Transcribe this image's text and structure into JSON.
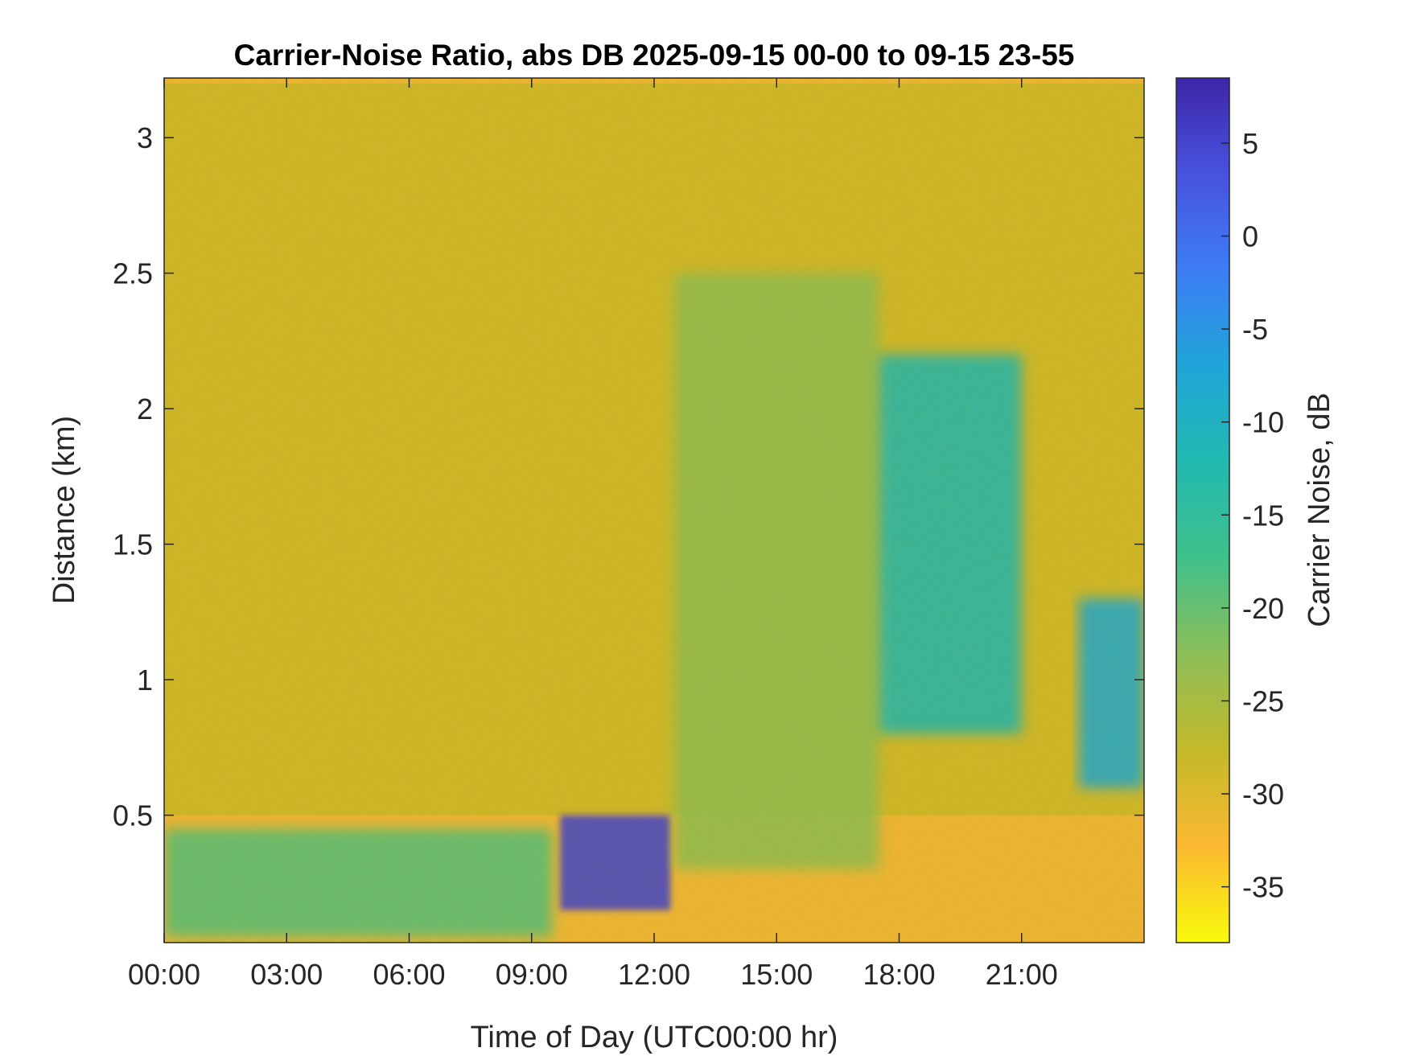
{
  "chart_data": {
    "type": "heatmap",
    "title": "Carrier-Noise Ratio, abs DB 2025-09-15 00-00 to 09-15 23-55",
    "xlabel": "Time of Day (UTC00:00 hr)",
    "ylabel": "Distance (km)",
    "colorbar_label": "Carrier Noise, dB",
    "x_unit": "hour",
    "xlim": [
      0,
      24
    ],
    "ylim": [
      0.03,
      3.22
    ],
    "clim": [
      -38,
      8.5
    ],
    "x_ticks": [
      0,
      3,
      6,
      9,
      12,
      15,
      18,
      21
    ],
    "x_tick_labels": [
      "00:00",
      "03:00",
      "06:00",
      "09:00",
      "12:00",
      "15:00",
      "18:00",
      "21:00"
    ],
    "y_ticks": [
      0.5,
      1,
      1.5,
      2,
      2.5,
      3
    ],
    "y_tick_labels": [
      "0.5",
      "1",
      "1.5",
      "2",
      "2.5",
      "3"
    ],
    "colorbar_ticks": [
      5,
      0,
      -5,
      -10,
      -15,
      -20,
      -25,
      -30,
      -35
    ],
    "colorbar_tick_labels": [
      "5",
      "0",
      "-5",
      "-10",
      "-15",
      "-20",
      "-25",
      "-30",
      "-35"
    ],
    "colormap": [
      "#f9fb0e",
      "#fbb931",
      "#c3b92a",
      "#8dbe58",
      "#40c08b",
      "#22b9b0",
      "#1fa5d8",
      "#3d7df5",
      "#4752df",
      "#3e26a8"
    ],
    "grid": false,
    "regions": [
      {
        "description": "background, upper range",
        "time_range": [
          0,
          24
        ],
        "distance_range": [
          0.5,
          3.2
        ],
        "value_db": -29
      },
      {
        "description": "near-surface layer",
        "time_range": [
          0,
          9.5
        ],
        "distance_range": [
          0.05,
          0.45
        ],
        "value_db": -19
      },
      {
        "description": "strong return",
        "time_range": [
          9.7,
          12.4
        ],
        "distance_range": [
          0.15,
          0.5
        ],
        "value_db": 5
      },
      {
        "description": "elevated layer",
        "time_range": [
          12.5,
          17.5
        ],
        "distance_range": [
          0.3,
          2.5
        ],
        "value_db": -23
      },
      {
        "description": "falling streaks",
        "time_range": [
          17.5,
          21
        ],
        "distance_range": [
          0.8,
          2.2
        ],
        "value_db": -12
      },
      {
        "description": "late streaks",
        "time_range": [
          22.4,
          24
        ],
        "distance_range": [
          0.6,
          1.3
        ],
        "value_db": -8
      }
    ]
  }
}
